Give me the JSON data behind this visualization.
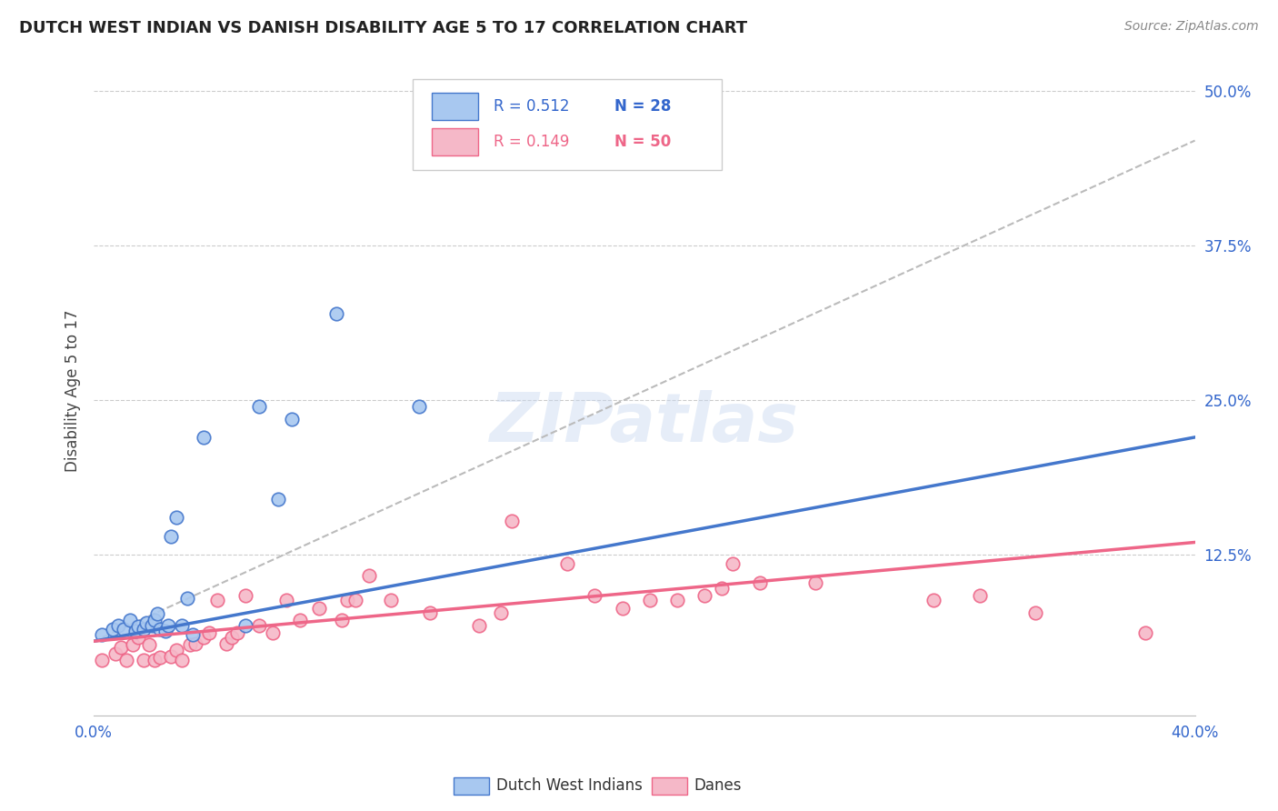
{
  "title": "DUTCH WEST INDIAN VS DANISH DISABILITY AGE 5 TO 17 CORRELATION CHART",
  "source": "Source: ZipAtlas.com",
  "ylabel": "Disability Age 5 to 17",
  "xlim": [
    0.0,
    0.4
  ],
  "ylim": [
    -0.005,
    0.52
  ],
  "yticks": [
    0.0,
    0.125,
    0.25,
    0.375,
    0.5
  ],
  "ytick_labels": [
    "",
    "12.5%",
    "25.0%",
    "37.5%",
    "50.0%"
  ],
  "xticks": [
    0.0,
    0.1,
    0.2,
    0.3,
    0.4
  ],
  "xtick_labels": [
    "0.0%",
    "",
    "",
    "",
    "40.0%"
  ],
  "watermark": "ZIPatlas",
  "blue_color": "#A8C8F0",
  "pink_color": "#F5B8C8",
  "blue_line_color": "#4477CC",
  "pink_line_color": "#EE6688",
  "dashed_line_color": "#BBBBBB",
  "dutch_x": [
    0.003,
    0.007,
    0.009,
    0.011,
    0.013,
    0.015,
    0.016,
    0.018,
    0.019,
    0.021,
    0.022,
    0.023,
    0.024,
    0.026,
    0.027,
    0.028,
    0.03,
    0.032,
    0.034,
    0.036,
    0.04,
    0.055,
    0.06,
    0.067,
    0.072,
    0.088,
    0.118
  ],
  "dutch_y": [
    0.06,
    0.065,
    0.068,
    0.065,
    0.072,
    0.063,
    0.067,
    0.065,
    0.07,
    0.068,
    0.072,
    0.077,
    0.065,
    0.063,
    0.068,
    0.14,
    0.155,
    0.068,
    0.09,
    0.06,
    0.22,
    0.068,
    0.245,
    0.17,
    0.235,
    0.32,
    0.245
  ],
  "danish_x": [
    0.003,
    0.008,
    0.01,
    0.012,
    0.014,
    0.016,
    0.018,
    0.02,
    0.022,
    0.024,
    0.028,
    0.03,
    0.032,
    0.035,
    0.037,
    0.04,
    0.042,
    0.045,
    0.048,
    0.05,
    0.052,
    0.055,
    0.06,
    0.065,
    0.07,
    0.075,
    0.082,
    0.09,
    0.092,
    0.095,
    0.1,
    0.108,
    0.122,
    0.14,
    0.148,
    0.152,
    0.172,
    0.182,
    0.192,
    0.202,
    0.212,
    0.222,
    0.228,
    0.232,
    0.242,
    0.262,
    0.305,
    0.322,
    0.342,
    0.382
  ],
  "danish_y": [
    0.04,
    0.045,
    0.05,
    0.04,
    0.052,
    0.058,
    0.04,
    0.052,
    0.04,
    0.042,
    0.043,
    0.048,
    0.04,
    0.052,
    0.053,
    0.058,
    0.062,
    0.088,
    0.053,
    0.058,
    0.062,
    0.092,
    0.068,
    0.062,
    0.088,
    0.072,
    0.082,
    0.072,
    0.088,
    0.088,
    0.108,
    0.088,
    0.078,
    0.068,
    0.078,
    0.152,
    0.118,
    0.092,
    0.082,
    0.088,
    0.088,
    0.092,
    0.098,
    0.118,
    0.102,
    0.102,
    0.088,
    0.092,
    0.078,
    0.062
  ],
  "blue_fit_x": [
    0.0,
    0.4
  ],
  "blue_fit_y": [
    0.055,
    0.22
  ],
  "pink_fit_x": [
    0.0,
    0.4
  ],
  "pink_fit_y": [
    0.055,
    0.135
  ],
  "dashed_fit_x": [
    0.0,
    0.4
  ],
  "dashed_fit_y": [
    0.055,
    0.46
  ]
}
